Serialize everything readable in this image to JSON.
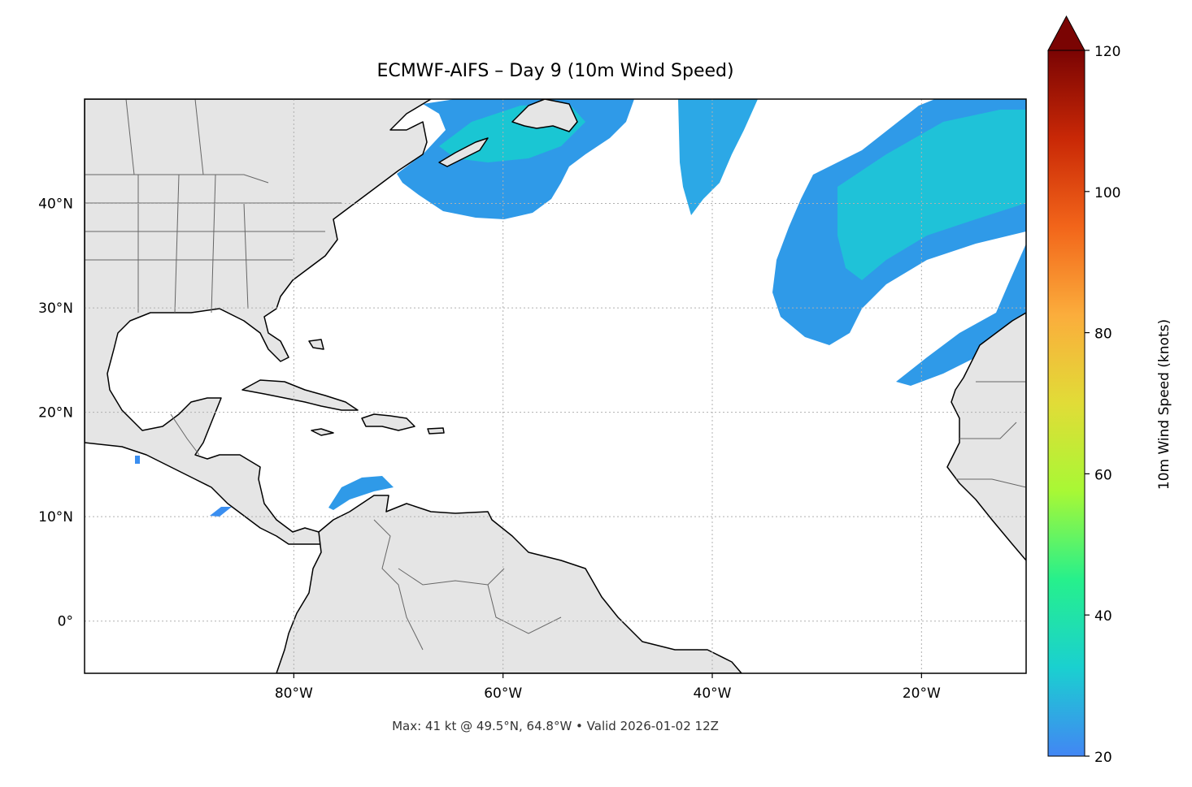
{
  "title": "ECMWF-AIFS – Day 9 (10m Wind Speed)",
  "caption": "Max: 41 kt @ 49.5°N, 64.8°W • Valid 2026-01-02 12Z",
  "map": {
    "projection": "PlateCarree",
    "extent": {
      "lon": [
        -100,
        -10
      ],
      "lat": [
        -5,
        50
      ]
    },
    "lon_ticks": [
      {
        "value": -80,
        "label": "80°W"
      },
      {
        "value": -60,
        "label": "60°W"
      },
      {
        "value": -40,
        "label": "40°W"
      },
      {
        "value": -20,
        "label": "20°W"
      }
    ],
    "lat_ticks": [
      {
        "value": 0,
        "label": "0°"
      },
      {
        "value": 10,
        "label": "10°N"
      },
      {
        "value": 20,
        "label": "20°N"
      },
      {
        "value": 30,
        "label": "30°N"
      },
      {
        "value": 40,
        "label": "40°N"
      }
    ],
    "land_color": "#e5e5e5",
    "coast_color": "#000000",
    "border_color": "#666666",
    "gridlines": true
  },
  "colorbar": {
    "label": "10m Wind Speed (knots)",
    "min": 20,
    "max": 120,
    "extend": "max",
    "ticks": [
      {
        "value": 20,
        "label": "20"
      },
      {
        "value": 40,
        "label": "40"
      },
      {
        "value": 60,
        "label": "60"
      },
      {
        "value": 80,
        "label": "80"
      },
      {
        "value": 100,
        "label": "100"
      },
      {
        "value": 120,
        "label": "120"
      }
    ],
    "colormap": [
      "#4286f4",
      "#1ad0d0",
      "#26f08c",
      "#a8f835",
      "#e1dc37",
      "#fbad3c",
      "#f2651a",
      "#c92806",
      "#7a0403"
    ],
    "extend_color": "#7a0403"
  }
}
